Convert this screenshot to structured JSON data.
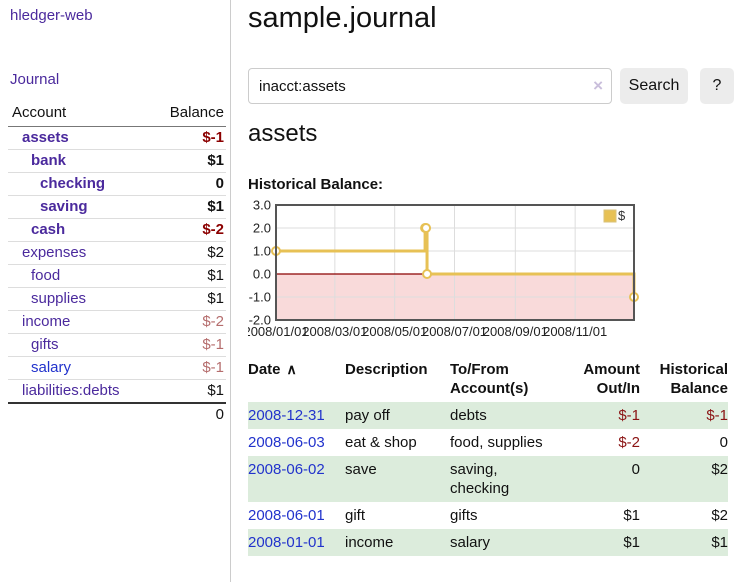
{
  "app": {
    "brand": "hledger-web",
    "nav_journal": "Journal"
  },
  "sidebar": {
    "header": {
      "account": "Account",
      "balance": "Balance"
    },
    "accounts": [
      {
        "name": "assets",
        "level": 0,
        "bold": true,
        "balance": "$-1"
      },
      {
        "name": "bank",
        "level": 1,
        "bold": true,
        "balance": "$1"
      },
      {
        "name": "checking",
        "level": 2,
        "bold": true,
        "balance": "0"
      },
      {
        "name": "saving",
        "level": 2,
        "bold": true,
        "balance": "$1"
      },
      {
        "name": "cash",
        "level": 1,
        "bold": true,
        "balance": "$-2"
      },
      {
        "name": "expenses",
        "level": 0,
        "bold": false,
        "balance": "$2"
      },
      {
        "name": "food",
        "level": 1,
        "bold": false,
        "balance": "$1"
      },
      {
        "name": "supplies",
        "level": 1,
        "bold": false,
        "balance": "$1"
      },
      {
        "name": "income",
        "level": 0,
        "bold": false,
        "balance": "$-2"
      },
      {
        "name": "gifts",
        "level": 1,
        "bold": false,
        "balance": "$-1"
      },
      {
        "name": "salary",
        "level": 1,
        "bold": false,
        "balance": "$-1",
        "link_color": "blue"
      },
      {
        "name": "liabilities:debts",
        "level": 0,
        "bold": false,
        "balance": "$1"
      }
    ],
    "total": "0"
  },
  "main": {
    "title": "sample.journal",
    "search": {
      "value": "inacct:assets",
      "clear_icon": "×",
      "button": "Search",
      "help": "?"
    },
    "account_heading": "assets",
    "chart_label": "Historical Balance:"
  },
  "chart_data": {
    "type": "line",
    "step": true,
    "title": "Historical Balance",
    "series": [
      {
        "name": "$",
        "points": [
          [
            "2008-01-01",
            1
          ],
          [
            "2008-06-01",
            2
          ],
          [
            "2008-06-02",
            2
          ],
          [
            "2008-06-03",
            0
          ],
          [
            "2008-12-31",
            -1
          ]
        ]
      }
    ],
    "x_range": [
      "2008-01-01",
      "2008-12-31"
    ],
    "ylim": [
      -2,
      3
    ],
    "yticks": [
      3,
      2,
      1,
      0,
      -1,
      -2
    ],
    "ytick_labels": [
      "3.0",
      "2.0",
      "1.0",
      "0.0",
      "-1.0",
      "-2.0"
    ],
    "xticks": [
      "2008-01-01",
      "2008-03-01",
      "2008-05-01",
      "2008-07-01",
      "2008-09-01",
      "2008-11-01"
    ],
    "xtick_labels": [
      "2008/01/01",
      "2008/03/01",
      "2008/05/01",
      "2008/07/01",
      "2008/09/01",
      "2008/11/01"
    ],
    "legend": {
      "label": "$",
      "position": "top-right"
    },
    "colors": {
      "line": "#e7c155",
      "negative_region": "#f9dada",
      "zero_line": "#8b0000",
      "grid": "#dddddd",
      "border": "#555555",
      "marker_fill": "#ffffff"
    }
  },
  "table": {
    "sort_icon": "∧",
    "headers": [
      {
        "label": "Date",
        "align": "left",
        "sorted": true
      },
      {
        "label": "Description",
        "align": "left"
      },
      {
        "label": "To/From\nAccount(s)",
        "align": "left"
      },
      {
        "label": "Amount\nOut/In",
        "align": "right"
      },
      {
        "label": "Historical\nBalance",
        "align": "right"
      }
    ],
    "rows": [
      {
        "date": "2008-12-31",
        "description": "pay off",
        "accounts": "debts",
        "amount": "$-1",
        "balance": "$-1"
      },
      {
        "date": "2008-06-03",
        "description": "eat & shop",
        "accounts": "food, supplies",
        "amount": "$-2",
        "balance": "0"
      },
      {
        "date": "2008-06-02",
        "description": "save",
        "accounts": "saving,\nchecking",
        "amount": "0",
        "balance": "$2"
      },
      {
        "date": "2008-06-01",
        "description": "gift",
        "accounts": "gifts",
        "amount": "$1",
        "balance": "$2"
      },
      {
        "date": "2008-01-01",
        "description": "income",
        "accounts": "salary",
        "amount": "$1",
        "balance": "$1"
      }
    ]
  }
}
